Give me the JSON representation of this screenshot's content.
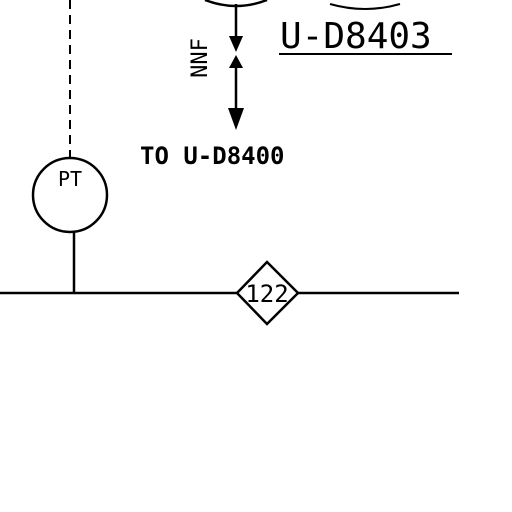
{
  "instrument": {
    "tag": "PT"
  },
  "line_label": "U-D8403",
  "flow_note": "NNF",
  "destination": "TO U-D8400",
  "line_marker": "122",
  "colors": {
    "ink": "#000000",
    "paper": "#ffffff"
  }
}
